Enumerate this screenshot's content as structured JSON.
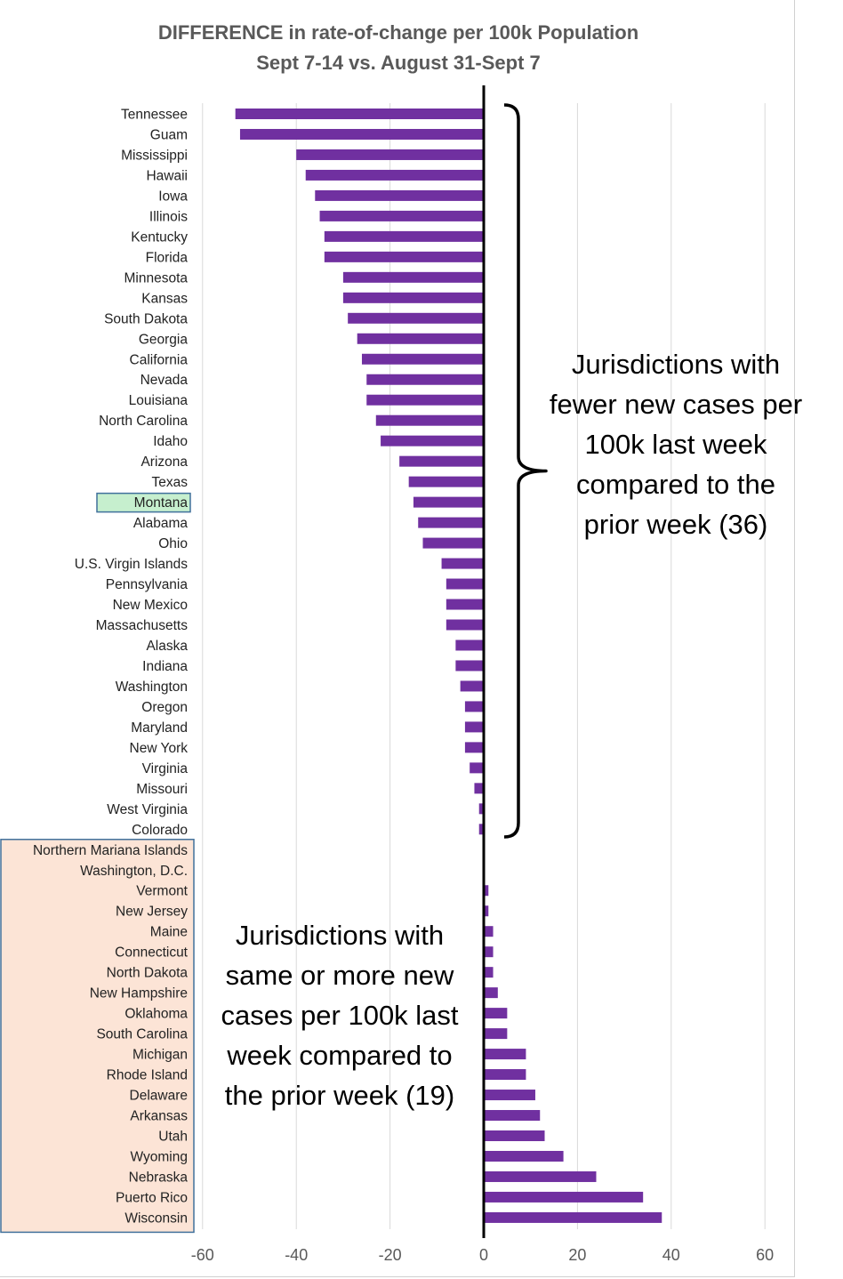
{
  "chart_data": {
    "type": "bar",
    "orientation": "horizontal",
    "title": [
      "DIFFERENCE in rate-of-change per 100k Population",
      "Sept 7-14 vs. August 31-Sept 7"
    ],
    "xlabel": "",
    "ylabel": "",
    "xlim": [
      -60,
      60
    ],
    "xticks": [
      -60,
      -40,
      -20,
      0,
      20,
      40,
      60
    ],
    "grid": true,
    "bar_color": "#7030a0",
    "highlight_color": "#c6efce",
    "group_box_color": "#fce4d6",
    "categories": [
      "Tennessee",
      "Guam",
      "Mississippi",
      "Hawaii",
      "Iowa",
      "Illinois",
      "Kentucky",
      "Florida",
      "Minnesota",
      "Kansas",
      "South Dakota",
      "Georgia",
      "California",
      "Nevada",
      "Louisiana",
      "North Carolina",
      "Idaho",
      "Arizona",
      "Texas",
      "Montana",
      "Alabama",
      "Ohio",
      "U.S. Virgin Islands",
      "Pennsylvania",
      "New Mexico",
      "Massachusetts",
      "Alaska",
      "Indiana",
      "Washington",
      "Oregon",
      "Maryland",
      "New York",
      "Virginia",
      "Missouri",
      "West Virginia",
      "Colorado",
      "Northern Mariana Islands",
      "Washington, D.C.",
      "Vermont",
      "New Jersey",
      "Maine",
      "Connecticut",
      "North Dakota",
      "New Hampshire",
      "Oklahoma",
      "South Carolina",
      "Michigan",
      "Rhode Island",
      "Delaware",
      "Arkansas",
      "Utah",
      "Wyoming",
      "Nebraska",
      "Puerto Rico",
      "Wisconsin"
    ],
    "values": [
      -53,
      -52,
      -40,
      -38,
      -36,
      -35,
      -34,
      -34,
      -30,
      -30,
      -29,
      -27,
      -26,
      -25,
      -25,
      -23,
      -22,
      -18,
      -16,
      -15,
      -14,
      -13,
      -9,
      -8,
      -8,
      -8,
      -6,
      -6,
      -5,
      -4,
      -4,
      -4,
      -3,
      -2,
      -1,
      -1,
      0,
      0,
      1,
      1,
      2,
      2,
      2,
      3,
      5,
      5,
      9,
      9,
      11,
      12,
      13,
      17,
      24,
      34,
      38
    ],
    "highlighted": [
      "Montana"
    ],
    "annotations": [
      {
        "lines": [
          "Jurisdictions with",
          "fewer new cases per",
          "100k last week",
          "compared to the",
          "prior week (36)"
        ]
      },
      {
        "lines": [
          "Jurisdictions with",
          "same or more new",
          "cases per 100k last",
          "week compared to",
          "the prior week (19)"
        ]
      }
    ]
  }
}
